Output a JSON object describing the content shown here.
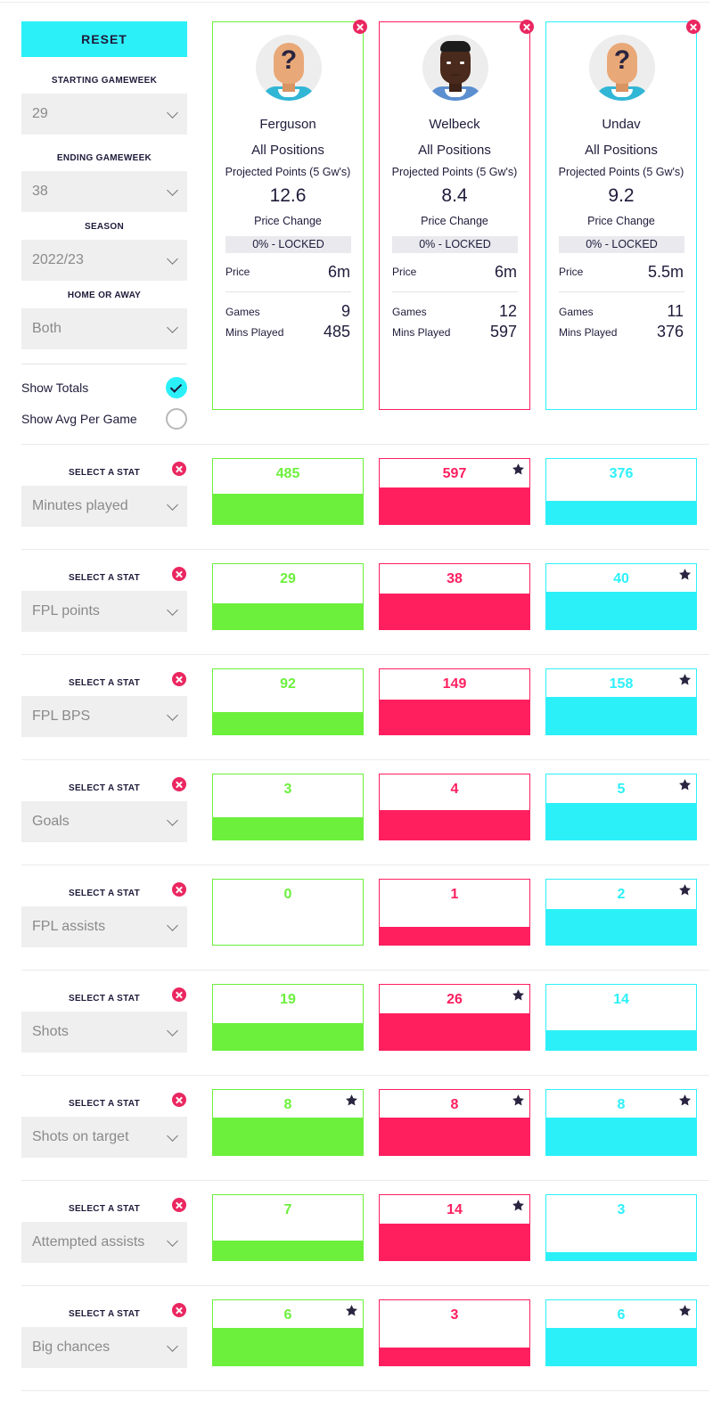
{
  "controls": {
    "reset_label": "RESET",
    "starting_gameweek": {
      "label": "STARTING GAMEWEEK",
      "value": "29"
    },
    "ending_gameweek": {
      "label": "ENDING GAMEWEEK",
      "value": "38"
    },
    "season": {
      "label": "SEASON",
      "value": "2022/23"
    },
    "home_or_away": {
      "label": "HOME OR AWAY",
      "value": "Both"
    },
    "show_totals": {
      "label": "Show Totals",
      "checked": true
    },
    "show_avg": {
      "label": "Show Avg Per Game",
      "checked": false
    }
  },
  "colors": {
    "p1": "#6cf03c",
    "p2": "#ff1f5f",
    "p3": "#2cf0f8",
    "remove": "#ea2760",
    "star": "#2a2440"
  },
  "players": [
    {
      "name": "Ferguson",
      "position": "All Positions",
      "projected_label": "Projected Points (5 Gw's)",
      "projected": "12.6",
      "price_change_label": "Price Change",
      "price_change": "0% - LOCKED",
      "price_label": "Price",
      "price": "6m",
      "games_label": "Games",
      "games": "9",
      "mins_label": "Mins Played",
      "mins": "485",
      "avatar": "unknown-player"
    },
    {
      "name": "Welbeck",
      "position": "All Positions",
      "projected_label": "Projected Points (5 Gw's)",
      "projected": "8.4",
      "price_change_label": "Price Change",
      "price_change": "0% - LOCKED",
      "price_label": "Price",
      "price": "6m",
      "games_label": "Games",
      "games": "12",
      "mins_label": "Mins Played",
      "mins": "597",
      "avatar": "player-portrait"
    },
    {
      "name": "Undav",
      "position": "All Positions",
      "projected_label": "Projected Points (5 Gw's)",
      "projected": "9.2",
      "price_change_label": "Price Change",
      "price_change": "0% - LOCKED",
      "price_label": "Price",
      "price": "5.5m",
      "games_label": "Games",
      "games": "11",
      "mins_label": "Mins Played",
      "mins": "376",
      "avatar": "unknown-player"
    }
  ],
  "stat_label": "SELECT A STAT",
  "stats": [
    {
      "name": "Minutes played",
      "values": [
        "485",
        "597",
        "376"
      ],
      "fill": [
        0.47,
        0.56,
        0.36
      ],
      "best": [
        false,
        true,
        false
      ]
    },
    {
      "name": "FPL points",
      "values": [
        "29",
        "38",
        "40"
      ],
      "fill": [
        0.4,
        0.55,
        0.57
      ],
      "best": [
        false,
        false,
        true
      ]
    },
    {
      "name": "FPL BPS",
      "values": [
        "92",
        "149",
        "158"
      ],
      "fill": [
        0.34,
        0.54,
        0.57
      ],
      "best": [
        false,
        false,
        true
      ]
    },
    {
      "name": "Goals",
      "values": [
        "3",
        "4",
        "5"
      ],
      "fill": [
        0.34,
        0.45,
        0.56
      ],
      "best": [
        false,
        false,
        true
      ]
    },
    {
      "name": "FPL assists",
      "values": [
        "0",
        "1",
        "2"
      ],
      "fill": [
        0.0,
        0.28,
        0.55
      ],
      "best": [
        false,
        false,
        true
      ]
    },
    {
      "name": "Shots",
      "values": [
        "19",
        "26",
        "14"
      ],
      "fill": [
        0.41,
        0.56,
        0.3
      ],
      "best": [
        false,
        true,
        false
      ]
    },
    {
      "name": "Shots on target",
      "values": [
        "8",
        "8",
        "8"
      ],
      "fill": [
        0.57,
        0.57,
        0.57
      ],
      "best": [
        true,
        true,
        true
      ]
    },
    {
      "name": "Attempted assists",
      "values": [
        "7",
        "14",
        "3"
      ],
      "fill": [
        0.3,
        0.56,
        0.12
      ],
      "best": [
        false,
        true,
        false
      ]
    },
    {
      "name": "Big chances",
      "values": [
        "6",
        "3",
        "6"
      ],
      "fill": [
        0.57,
        0.28,
        0.57
      ],
      "best": [
        true,
        false,
        true
      ]
    }
  ]
}
